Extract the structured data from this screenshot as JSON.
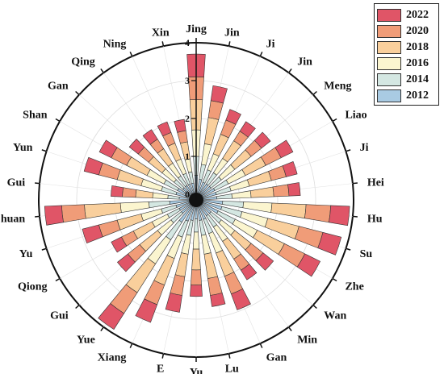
{
  "chart_data": {
    "type": "bar",
    "subtype": "polar-stacked",
    "categories": [
      "Jing",
      "Jin",
      "Ji",
      "Jin",
      "Meng",
      "Liao",
      "Ji",
      "Hei",
      "Hu",
      "Su",
      "Zhe",
      "Wan",
      "Min",
      "Gan",
      "Lu",
      "Yu",
      "E",
      "Xiang",
      "Yue",
      "Gui",
      "Qiong",
      "Yu",
      "Chuan",
      "Gui",
      "Yun",
      "Shan",
      "Gan",
      "Qing",
      "Ning",
      "Xin"
    ],
    "radial_axis": {
      "range": [
        0,
        4
      ],
      "ticks": [
        0,
        1,
        2,
        3,
        4
      ]
    },
    "series": [
      {
        "name": "2012",
        "color": "#a9cbe3",
        "values": [
          0.5,
          0.4,
          0.35,
          0.35,
          0.35,
          0.4,
          0.4,
          0.4,
          0.55,
          0.55,
          0.5,
          0.35,
          0.35,
          0.4,
          0.4,
          0.35,
          0.4,
          0.45,
          0.55,
          0.35,
          0.35,
          0.4,
          0.55,
          0.3,
          0.4,
          0.4,
          0.3,
          0.3,
          0.3,
          0.3
        ]
      },
      {
        "name": "2014",
        "color": "#d4e7e2",
        "values": [
          0.5,
          0.4,
          0.35,
          0.35,
          0.35,
          0.4,
          0.4,
          0.4,
          0.55,
          0.55,
          0.5,
          0.35,
          0.35,
          0.4,
          0.4,
          0.35,
          0.4,
          0.45,
          0.55,
          0.35,
          0.35,
          0.4,
          0.55,
          0.3,
          0.4,
          0.4,
          0.3,
          0.3,
          0.3,
          0.3
        ]
      },
      {
        "name": "2016",
        "color": "#fbf5cf",
        "values": [
          0.7,
          0.55,
          0.45,
          0.45,
          0.45,
          0.5,
          0.5,
          0.5,
          0.75,
          0.7,
          0.65,
          0.45,
          0.45,
          0.55,
          0.5,
          0.45,
          0.5,
          0.6,
          0.75,
          0.45,
          0.45,
          0.55,
          0.75,
          0.4,
          0.55,
          0.5,
          0.4,
          0.4,
          0.4,
          0.35
        ]
      },
      {
        "name": "2018",
        "color": "#f9cf9c",
        "values": [
          0.8,
          0.7,
          0.55,
          0.55,
          0.55,
          0.6,
          0.6,
          0.6,
          0.9,
          0.85,
          0.8,
          0.55,
          0.55,
          0.65,
          0.65,
          0.55,
          0.6,
          0.75,
          0.9,
          0.6,
          0.55,
          0.65,
          0.95,
          0.45,
          0.65,
          0.6,
          0.45,
          0.45,
          0.45,
          0.45
        ]
      },
      {
        "name": "2020",
        "color": "#f09c78",
        "values": [
          0.6,
          0.45,
          0.4,
          0.3,
          0.35,
          0.45,
          0.4,
          0.4,
          0.65,
          0.65,
          0.6,
          0.4,
          0.35,
          0.5,
          0.45,
          0.4,
          0.5,
          0.55,
          0.65,
          0.4,
          0.35,
          0.5,
          0.6,
          0.35,
          0.5,
          0.45,
          0.35,
          0.3,
          0.3,
          0.3
        ]
      },
      {
        "name": "2022",
        "color": "#e05567",
        "values": [
          0.6,
          0.4,
          0.3,
          0.3,
          0.3,
          0.35,
          0.3,
          0.3,
          0.5,
          0.5,
          0.45,
          0.35,
          0.3,
          0.45,
          0.3,
          0.3,
          0.45,
          0.5,
          0.5,
          0.35,
          0.3,
          0.45,
          0.45,
          0.3,
          0.4,
          0.35,
          0.3,
          0.3,
          0.3,
          0.3
        ]
      }
    ],
    "legend": {
      "position": "top-right",
      "order": [
        "2022",
        "2020",
        "2018",
        "2016",
        "2014",
        "2012"
      ]
    },
    "grid": true
  }
}
